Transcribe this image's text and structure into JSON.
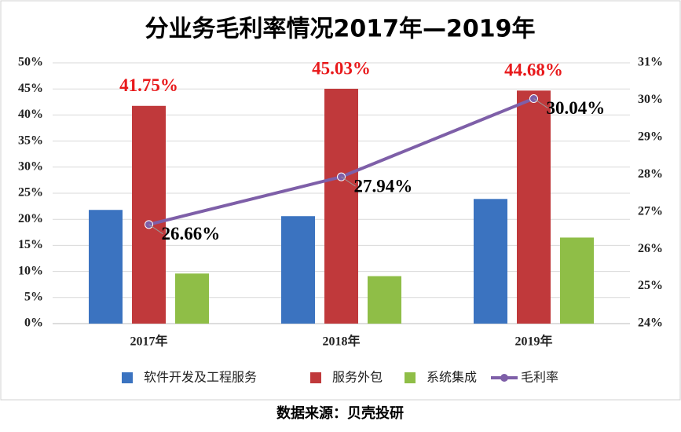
{
  "chart_data": {
    "type": "bar",
    "title": "分业务毛利率情况2017年—2019年",
    "categories": [
      "2017年",
      "2018年",
      "2019年"
    ],
    "series": [
      {
        "name": "软件开发及工程服务",
        "color": "#3b73c0",
        "values": [
          21.8,
          20.6,
          23.9
        ]
      },
      {
        "name": "服务外包",
        "color": "#c0393b",
        "values": [
          41.75,
          45.03,
          44.68
        ],
        "value_labels": [
          "41.75%",
          "45.03%",
          "44.68%"
        ]
      },
      {
        "name": "系统集成",
        "color": "#8fbe47",
        "values": [
          9.6,
          9.1,
          16.5
        ]
      },
      {
        "name": "毛利率",
        "color": "#7e5fa8",
        "type": "line",
        "axis": "y2",
        "values": [
          26.66,
          27.94,
          30.04
        ],
        "value_labels": [
          "26.66%",
          "27.94%",
          "30.04%"
        ]
      }
    ],
    "ylim": [
      0,
      50
    ],
    "yticks": [
      {
        "value": 0,
        "label": "0%"
      },
      {
        "value": 5,
        "label": "5%"
      },
      {
        "value": 10,
        "label": "10%"
      },
      {
        "value": 15,
        "label": "15%"
      },
      {
        "value": 20,
        "label": "20%"
      },
      {
        "value": 25,
        "label": "25%"
      },
      {
        "value": 30,
        "label": "30%"
      },
      {
        "value": 35,
        "label": "35%"
      },
      {
        "value": 40,
        "label": "40%"
      },
      {
        "value": 45,
        "label": "45%"
      },
      {
        "value": 50,
        "label": "50%"
      }
    ],
    "y2lim": [
      24,
      31
    ],
    "y2ticks": [
      {
        "value": 24,
        "label": "24%"
      },
      {
        "value": 25,
        "label": "25%"
      },
      {
        "value": 26,
        "label": "26%"
      },
      {
        "value": 27,
        "label": "27%"
      },
      {
        "value": 28,
        "label": "28%"
      },
      {
        "value": 29,
        "label": "29%"
      },
      {
        "value": 30,
        "label": "30%"
      },
      {
        "value": 31,
        "label": "31%"
      }
    ],
    "grid": true,
    "legend": "bottom",
    "source": "数据来源：贝壳投研"
  }
}
